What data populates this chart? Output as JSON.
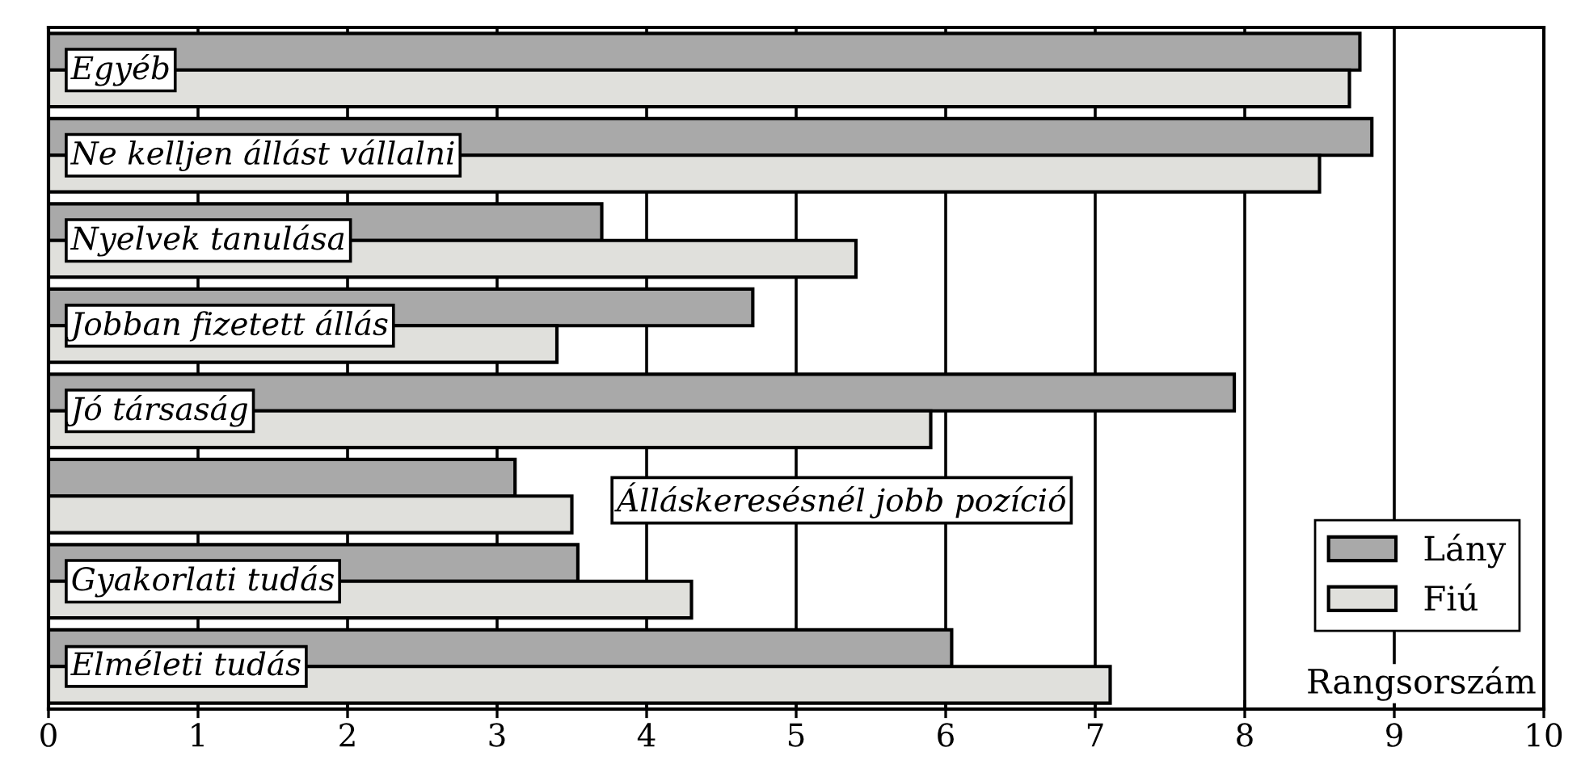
{
  "chart_data": {
    "type": "bar",
    "orientation": "horizontal",
    "xlabel": "Rangsorszám",
    "categories": [
      "Egyéb",
      "Ne kelljen állást vállalni",
      "Nyelvek tanulása",
      "Jobban fizetett állás",
      "Jó társaság",
      "Álláskeresésnél jobb pozíció",
      "Gyakorlati tudás",
      "Elméleti tudás"
    ],
    "series": [
      {
        "name": "Lány",
        "color": "#a9a9a9",
        "values": [
          8.77,
          8.85,
          3.7,
          4.71,
          7.93,
          3.12,
          3.54,
          6.04
        ]
      },
      {
        "name": "Fiú",
        "color": "#e0e0dc",
        "values": [
          8.7,
          8.5,
          5.4,
          3.4,
          5.9,
          3.5,
          4.3,
          7.1
        ]
      }
    ],
    "xlim": [
      0,
      10
    ],
    "xticks": [
      0,
      1,
      2,
      3,
      4,
      5,
      6,
      7,
      8,
      9,
      10
    ],
    "grid": "x",
    "legend": "bottom right"
  }
}
